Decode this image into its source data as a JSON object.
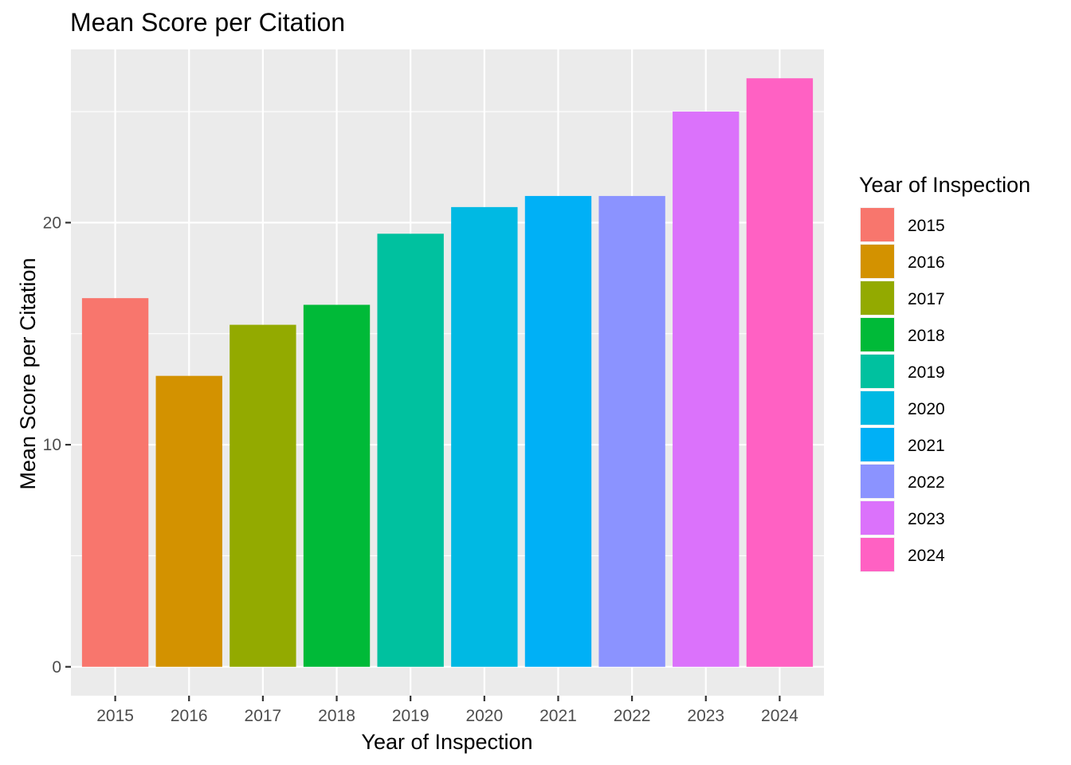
{
  "chart_data": {
    "type": "bar",
    "title": "Mean Score per Citation",
    "xlabel": "Year of Inspection",
    "ylabel": "Mean Score per Citation",
    "categories": [
      "2015",
      "2016",
      "2017",
      "2018",
      "2019",
      "2020",
      "2021",
      "2022",
      "2023",
      "2024"
    ],
    "values": [
      16.6,
      13.1,
      15.4,
      16.3,
      19.5,
      20.7,
      21.2,
      21.2,
      25.0,
      26.5
    ],
    "colors": [
      "#F8766D",
      "#D39200",
      "#93AA00",
      "#00BA38",
      "#00C19F",
      "#00B9E3",
      "#00B0F6",
      "#8B93FF",
      "#DB72FB",
      "#FF61C3"
    ],
    "ylim": [
      -1.3,
      27.8
    ],
    "y_ticks": [
      0,
      10,
      20
    ],
    "y_tick_labels": [
      "0",
      "10",
      "20"
    ],
    "grid": true,
    "legend": {
      "title": "Year of Inspection",
      "placement": "right",
      "entries": [
        "2015",
        "2016",
        "2017",
        "2018",
        "2019",
        "2020",
        "2021",
        "2022",
        "2023",
        "2024"
      ]
    }
  }
}
